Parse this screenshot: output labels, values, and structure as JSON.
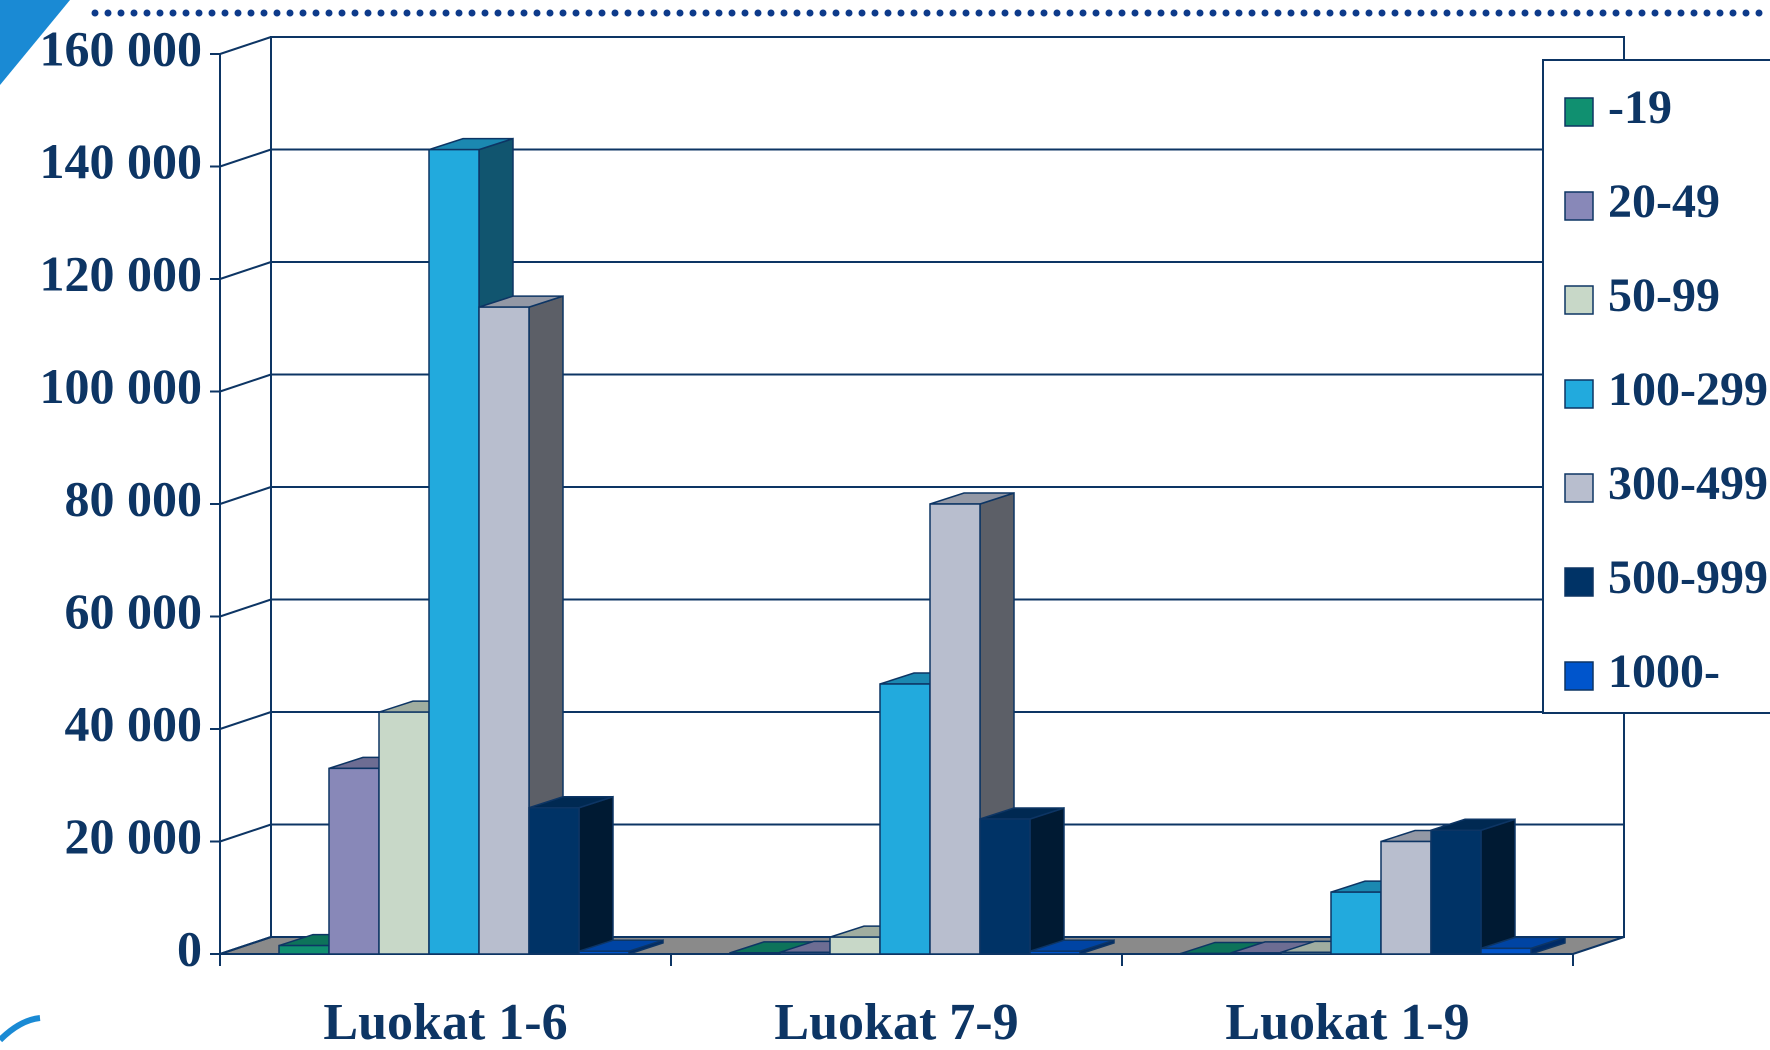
{
  "chart_data": {
    "type": "bar",
    "categories": [
      "Luokat 1-6",
      "Luokat 7-9",
      "Luokat 1-9"
    ],
    "series": [
      {
        "name": "-19",
        "color": "#109070",
        "values": [
          1500,
          200,
          100
        ]
      },
      {
        "name": "20-49",
        "color": "#8888b8",
        "values": [
          33000,
          300,
          200
        ]
      },
      {
        "name": "50-99",
        "color": "#c8d8c8",
        "values": [
          43000,
          3000,
          300
        ]
      },
      {
        "name": "100-299",
        "color": "#22aadd",
        "values": [
          143000,
          48000,
          11000
        ]
      },
      {
        "name": "300-499",
        "color": "#b8bece",
        "values": [
          115000,
          80000,
          20000
        ]
      },
      {
        "name": "500-999",
        "color": "#003366",
        "values": [
          26000,
          24000,
          22000
        ]
      },
      {
        "name": "1000-",
        "color": "#0055cc",
        "values": [
          500,
          500,
          1000
        ]
      }
    ],
    "ylim": [
      0,
      160000
    ],
    "yticks": [
      0,
      {
        "value": 20000,
        "label": "20 000"
      },
      {
        "value": 40000,
        "label": "40 000"
      },
      {
        "value": 60000,
        "label": "60 000"
      },
      {
        "value": 80000,
        "label": "80 000"
      },
      {
        "value": 100000,
        "label": "100 000"
      },
      {
        "value": 120000,
        "label": "120 000"
      },
      {
        "value": 140000,
        "label": "140 000"
      },
      {
        "value": 160000,
        "label": "160 000"
      }
    ],
    "grid": true,
    "legend": "right"
  }
}
